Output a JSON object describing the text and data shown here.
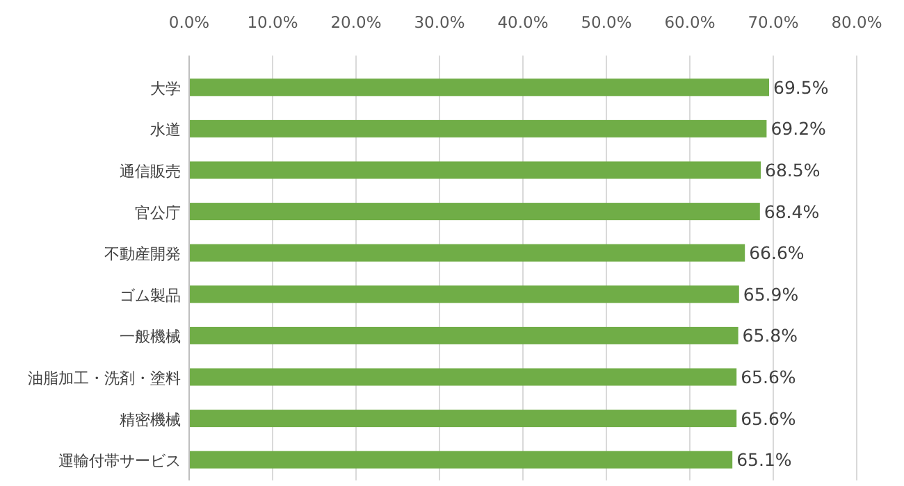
{
  "chart_data": {
    "type": "bar",
    "orientation": "horizontal",
    "categories": [
      "大学",
      "水道",
      "通信販売",
      "官公庁",
      "不動産開発",
      "ゴム製品",
      "一般機械",
      "油脂加工・洗剤・塗料",
      "精密機械",
      "運輸付帯サービス"
    ],
    "values": [
      69.5,
      69.2,
      68.5,
      68.4,
      66.6,
      65.9,
      65.8,
      65.6,
      65.6,
      65.1
    ],
    "value_labels": [
      "69.5%",
      "69.2%",
      "68.5%",
      "68.4%",
      "66.6%",
      "65.9%",
      "65.8%",
      "65.6%",
      "65.6%",
      "65.1%"
    ],
    "color": "#70ad47",
    "xlim": [
      0,
      80
    ],
    "xticks": [
      {
        "value": 0,
        "label": "0.0%"
      },
      {
        "value": 10,
        "label": "10.0%"
      },
      {
        "value": 20,
        "label": "20.0%"
      },
      {
        "value": 30,
        "label": "30.0%"
      },
      {
        "value": 40,
        "label": "40.0%"
      },
      {
        "value": 50,
        "label": "50.0%"
      },
      {
        "value": 60,
        "label": "60.0%"
      },
      {
        "value": 70,
        "label": "70.0%"
      },
      {
        "value": 80,
        "label": "80.0%"
      }
    ],
    "grid": "x"
  }
}
